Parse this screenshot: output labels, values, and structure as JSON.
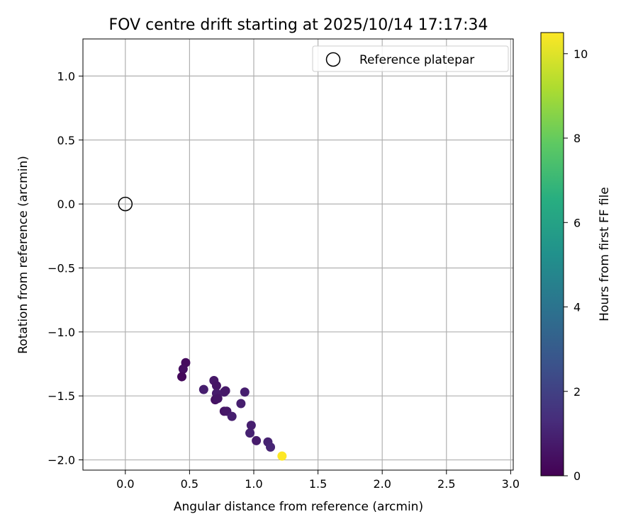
{
  "chart_data": {
    "type": "scatter",
    "title": "FOV centre drift starting at 2025/10/14 17:17:34",
    "xlabel": "Angular distance from reference (arcmin)",
    "ylabel": "Rotation from reference (arcmin)",
    "xlim": [
      -0.33,
      3.02
    ],
    "ylim": [
      -2.08,
      1.29
    ],
    "xticks": [
      0.0,
      0.5,
      1.0,
      1.5,
      2.0,
      2.5,
      3.0
    ],
    "xtick_labels": [
      "0.0",
      "0.5",
      "1.0",
      "1.5",
      "2.0",
      "2.5",
      "3.0"
    ],
    "yticks": [
      1.0,
      0.5,
      0.0,
      -0.5,
      -1.0,
      -1.5,
      -2.0
    ],
    "ytick_labels": [
      "1.0",
      "0.5",
      "0.0",
      "−0.5",
      "−1.0",
      "−1.5",
      "−2.0"
    ],
    "grid": true,
    "legend": {
      "position": "top-right",
      "entries": [
        "Reference platepar"
      ]
    },
    "reference_point": {
      "x": 0.0,
      "y": 0.0,
      "label": "Reference platepar"
    },
    "colorbar": {
      "label": "Hours from first FF file",
      "range": [
        0,
        10.5
      ],
      "ticks": [
        0,
        2,
        4,
        6,
        8,
        10
      ],
      "tick_labels": [
        "0",
        "2",
        "4",
        "6",
        "8",
        "10"
      ],
      "colormap": "viridis"
    },
    "points": [
      {
        "x": 0.47,
        "y": -1.24,
        "h": 0.3
      },
      {
        "x": 0.45,
        "y": -1.29,
        "h": 0.4
      },
      {
        "x": 0.44,
        "y": -1.35,
        "h": 0.2
      },
      {
        "x": 0.61,
        "y": -1.45,
        "h": 0.9
      },
      {
        "x": 0.69,
        "y": -1.38,
        "h": 0.7
      },
      {
        "x": 0.71,
        "y": -1.42,
        "h": 0.6
      },
      {
        "x": 0.71,
        "y": -1.48,
        "h": 0.8
      },
      {
        "x": 0.7,
        "y": -1.53,
        "h": 0.5
      },
      {
        "x": 0.72,
        "y": -1.52,
        "h": 0.6
      },
      {
        "x": 0.77,
        "y": -1.47,
        "h": 0.8
      },
      {
        "x": 0.78,
        "y": -1.46,
        "h": 0.7
      },
      {
        "x": 0.77,
        "y": -1.62,
        "h": 0.6
      },
      {
        "x": 0.79,
        "y": -1.62,
        "h": 0.7
      },
      {
        "x": 0.83,
        "y": -1.66,
        "h": 0.9
      },
      {
        "x": 0.9,
        "y": -1.56,
        "h": 0.9
      },
      {
        "x": 0.93,
        "y": -1.47,
        "h": 0.9
      },
      {
        "x": 0.97,
        "y": -1.79,
        "h": 1.0
      },
      {
        "x": 0.98,
        "y": -1.73,
        "h": 0.9
      },
      {
        "x": 1.02,
        "y": -1.85,
        "h": 0.8
      },
      {
        "x": 1.11,
        "y": -1.86,
        "h": 1.0
      },
      {
        "x": 1.13,
        "y": -1.9,
        "h": 1.1
      },
      {
        "x": 1.22,
        "y": -1.97,
        "h": 10.5
      }
    ]
  }
}
